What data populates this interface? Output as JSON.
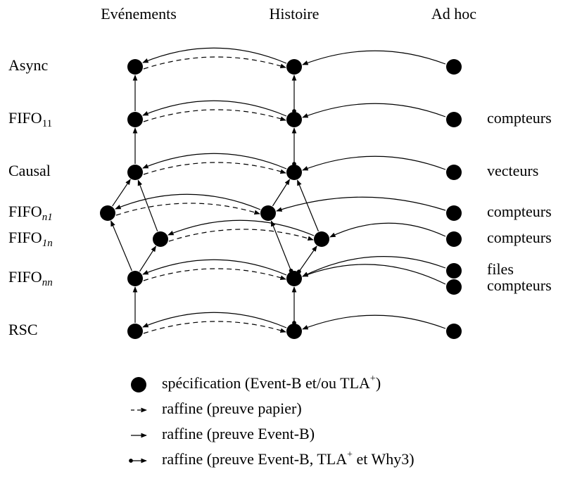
{
  "headers": [
    "Evénements",
    "Histoire",
    "Ad hoc"
  ],
  "rows": [
    {
      "label": "Async"
    },
    {
      "label": "FIFO",
      "sub": "11"
    },
    {
      "label": "Causal"
    },
    {
      "label": "FIFO",
      "sub": "n1"
    },
    {
      "label": "FIFO",
      "sub": "1n"
    },
    {
      "label": "FIFO",
      "sub": "nn"
    },
    {
      "label": "RSC"
    }
  ],
  "adhoc_labels": [
    "compteurs",
    "vecteurs",
    "compteurs",
    "compteurs",
    "files",
    "compteurs"
  ],
  "legend": [
    {
      "text": "spécification (Event-B et/ou TLA",
      "sup": "+",
      "rest": ")"
    },
    {
      "text": "raffine (preuve papier)"
    },
    {
      "text": "raffine (preuve Event-B)"
    },
    {
      "text": "raffine (preuve Event-B, TLA",
      "sup": "+",
      "rest": " et Why3)"
    }
  ]
}
